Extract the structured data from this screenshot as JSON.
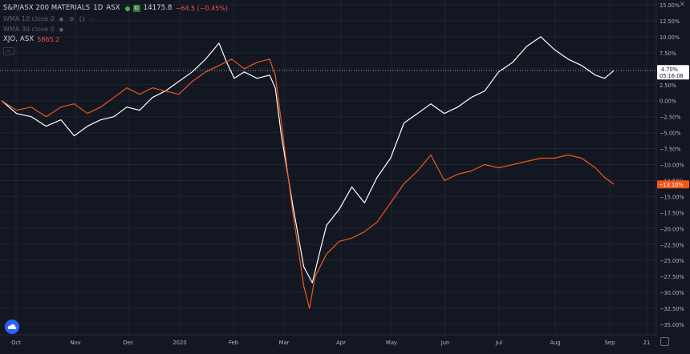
{
  "legend": {
    "symbol_title": "S&P/ASX 200 MATERIALS",
    "interval": "1D",
    "exchange": "ASX",
    "badge": "D",
    "last": "14175.8",
    "change": "−64.5 (−0.45%)",
    "ma1_label": "WMA 10 close 0",
    "ma2_label": "WMA 30 close 0",
    "compare_label": "XJO, ASX",
    "compare_value": "5865.2"
  },
  "price_labels": {
    "white_pct": "4.70%",
    "white_timer": "05:16:08",
    "orange_pct": "−13.10%",
    "orange_hidden": "−12.5"
  },
  "colors": {
    "background": "#131722",
    "grid": "#1f2330",
    "axis_text": "#b2b5be",
    "series_white": "#ffffff",
    "series_orange": "#f2561d",
    "price_label_bg": "#f2561d"
  },
  "icons": [
    "eye-icon",
    "settings-icon",
    "curly-icon",
    "more-icon",
    "cloud-icon",
    "gear-icon",
    "close-icon"
  ],
  "chart_data": {
    "type": "line",
    "y_unit": "percent",
    "ylim": [
      -37.5,
      15
    ],
    "grid": true,
    "x_ticks": [
      "Oct",
      "Nov",
      "Dec",
      "2020",
      "Feb",
      "Mar",
      "Apr",
      "May",
      "Jun",
      "Jul",
      "Aug",
      "Sep",
      "21"
    ],
    "y_ticks": [
      "15.00%",
      "12.50%",
      "10.00%",
      "7.50%",
      "5.00%",
      "2.50%",
      "0.00%",
      "−2.50%",
      "−5.00%",
      "−7.50%",
      "−10.00%",
      "−12.50%",
      "−15.00%",
      "−17.50%",
      "−20.00%",
      "−22.50%",
      "−25.00%",
      "−27.50%",
      "−30.00%",
      "−32.50%",
      "−35.00%"
    ],
    "y_tick_values": [
      15,
      12.5,
      10,
      7.5,
      5,
      2.5,
      0,
      -2.5,
      -5,
      -7.5,
      -10,
      -12.5,
      -15,
      -17.5,
      -20,
      -22.5,
      -25,
      -27.5,
      -30,
      -32.5,
      -35
    ],
    "series": [
      {
        "color": "#ffffff",
        "points": [
          [
            0.0,
            0.0
          ],
          [
            0.25,
            -2.0
          ],
          [
            0.5,
            -2.5
          ],
          [
            0.75,
            -4.0
          ],
          [
            1.0,
            -3.0
          ],
          [
            1.25,
            -5.5
          ],
          [
            1.5,
            -4.0
          ],
          [
            1.75,
            -3.0
          ],
          [
            2.0,
            -2.5
          ],
          [
            2.25,
            -1.0
          ],
          [
            2.5,
            -1.5
          ],
          [
            2.75,
            0.5
          ],
          [
            3.0,
            1.5
          ],
          [
            3.25,
            3.0
          ],
          [
            3.5,
            4.5
          ],
          [
            3.75,
            6.5
          ],
          [
            4.0,
            9.0
          ],
          [
            4.15,
            6.0
          ],
          [
            4.3,
            3.5
          ],
          [
            4.5,
            4.5
          ],
          [
            4.75,
            3.5
          ],
          [
            5.0,
            4.0
          ],
          [
            5.1,
            2.0
          ],
          [
            5.2,
            -5.0
          ],
          [
            5.3,
            -10.5
          ],
          [
            5.4,
            -16.0
          ],
          [
            5.5,
            -21.0
          ],
          [
            5.6,
            -26.0
          ],
          [
            5.75,
            -28.5
          ],
          [
            5.9,
            -23.0
          ],
          [
            6.0,
            -19.5
          ],
          [
            6.25,
            -17.0
          ],
          [
            6.5,
            -13.5
          ],
          [
            6.75,
            -16.0
          ],
          [
            7.0,
            -12.0
          ],
          [
            7.25,
            -9.0
          ],
          [
            7.5,
            -3.5
          ],
          [
            7.75,
            -2.0
          ],
          [
            8.0,
            -0.5
          ],
          [
            8.25,
            -2.0
          ],
          [
            8.5,
            -1.0
          ],
          [
            8.75,
            0.5
          ],
          [
            9.0,
            1.5
          ],
          [
            9.25,
            4.5
          ],
          [
            9.5,
            6.0
          ],
          [
            9.75,
            8.5
          ],
          [
            10.0,
            10.0
          ],
          [
            10.25,
            8.0
          ],
          [
            10.5,
            6.5
          ],
          [
            10.75,
            5.5
          ],
          [
            11.0,
            4.0
          ],
          [
            11.25,
            3.5
          ],
          [
            11.5,
            4.7
          ]
        ]
      },
      {
        "color": "#f2561d",
        "points": [
          [
            0.0,
            0.0
          ],
          [
            0.25,
            -1.5
          ],
          [
            0.5,
            -1.0
          ],
          [
            0.75,
            -2.5
          ],
          [
            1.0,
            -1.0
          ],
          [
            1.25,
            -0.5
          ],
          [
            1.5,
            -2.0
          ],
          [
            1.75,
            -1.0
          ],
          [
            2.0,
            0.5
          ],
          [
            2.25,
            2.0
          ],
          [
            2.5,
            1.0
          ],
          [
            2.75,
            2.0
          ],
          [
            3.0,
            1.5
          ],
          [
            3.25,
            1.0
          ],
          [
            3.5,
            3.0
          ],
          [
            3.75,
            4.5
          ],
          [
            4.0,
            5.5
          ],
          [
            4.25,
            6.5
          ],
          [
            4.5,
            5.0
          ],
          [
            4.75,
            6.0
          ],
          [
            5.0,
            6.5
          ],
          [
            5.1,
            4.0
          ],
          [
            5.2,
            -3.0
          ],
          [
            5.3,
            -10.0
          ],
          [
            5.4,
            -17.0
          ],
          [
            5.5,
            -23.0
          ],
          [
            5.6,
            -29.0
          ],
          [
            5.7,
            -32.5
          ],
          [
            5.8,
            -27.5
          ],
          [
            6.0,
            -24.0
          ],
          [
            6.25,
            -22.0
          ],
          [
            6.5,
            -21.5
          ],
          [
            6.75,
            -20.5
          ],
          [
            7.0,
            -19.0
          ],
          [
            7.25,
            -16.0
          ],
          [
            7.5,
            -13.0
          ],
          [
            7.75,
            -11.0
          ],
          [
            8.0,
            -8.5
          ],
          [
            8.25,
            -12.5
          ],
          [
            8.5,
            -11.5
          ],
          [
            8.75,
            -11.0
          ],
          [
            9.0,
            -10.0
          ],
          [
            9.25,
            -10.5
          ],
          [
            9.5,
            -10.0
          ],
          [
            9.75,
            -9.5
          ],
          [
            10.0,
            -9.0
          ],
          [
            10.25,
            -9.0
          ],
          [
            10.5,
            -8.5
          ],
          [
            10.75,
            -9.0
          ],
          [
            11.0,
            -10.5
          ],
          [
            11.25,
            -12.0
          ],
          [
            11.5,
            -13.1
          ]
        ]
      }
    ]
  }
}
